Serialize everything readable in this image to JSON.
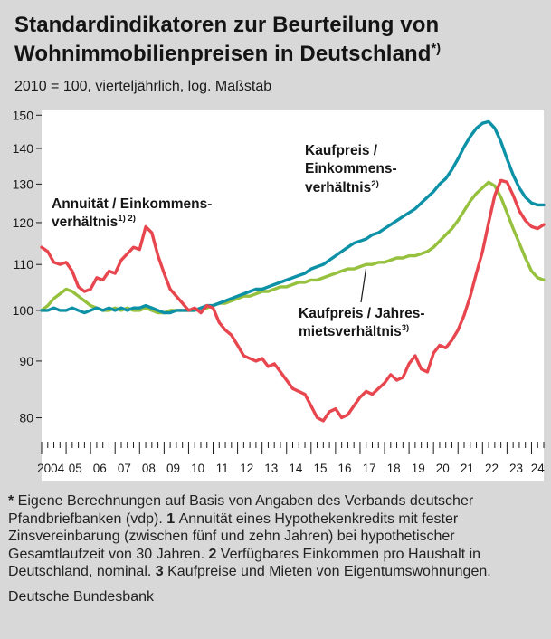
{
  "header": {
    "title_line1": "Standardindikatoren zur Beurteilung von",
    "title_line2": "Wohnimmobilienpreisen in Deutschland",
    "title_sup": "*)",
    "subtitle": "2010 = 100, vierteljährlich, log. Maßstab"
  },
  "annotations": {
    "annuity": {
      "line1": "Annuität / Einkommens-",
      "line2": "verhältnis",
      "sup": "1) 2)"
    },
    "price_income": {
      "line1": "Kaufpreis /",
      "line2": "Einkommens-",
      "line3": "verhältnis",
      "sup": "2)"
    },
    "price_rent": {
      "line1": "Kaufpreis / Jahres-",
      "line2": "mietsverhältnis",
      "sup": "3)"
    }
  },
  "footnotes": [
    {
      "marker": "*",
      "text": "Eigene Berechnungen auf Basis von Angaben des Verbands deutscher Pfandbriefbanken (vdp)."
    },
    {
      "marker": "1",
      "text": "Annuität eines Hypothekenkredits mit fester Zinsvereinbarung (zwischen fünf und zehn Jahren) bei hypothetischer Gesamtlaufzeit von 30 Jahren."
    },
    {
      "marker": "2",
      "text": "Verfügbares Einkommen pro Haushalt in Deutschland, nominal."
    },
    {
      "marker": "3",
      "text": "Kaufpreise und Mieten von Eigentumswohnungen."
    }
  ],
  "source": "Deutsche Bundesbank",
  "colors": {
    "background": "#d8d8d8",
    "plot_bg": "#ffffff",
    "text": "#1a1a1a",
    "red": "#e8464e",
    "teal": "#0d91a7",
    "green": "#96c13e"
  },
  "chart_data": {
    "type": "line",
    "title": "Standardindikatoren zur Beurteilung von Wohnimmobilienpreisen in Deutschland*)",
    "subtitle": "2010 = 100, vierteljährlich, log. Maßstab",
    "y_scale": "log",
    "ylim": [
      78,
      151.5
    ],
    "y_ticks": [
      80,
      90,
      100,
      110,
      120,
      130,
      140,
      150
    ],
    "grid": false,
    "frequency": "quarterly",
    "x_range": [
      "2004 Q1",
      "2024 Q3"
    ],
    "x_tick_labels": [
      "2004",
      "05",
      "06",
      "07",
      "08",
      "09",
      "10",
      "11",
      "12",
      "13",
      "14",
      "15",
      "16",
      "17",
      "18",
      "19",
      "20",
      "21",
      "22",
      "23",
      "24"
    ],
    "series": [
      {
        "name": "Annuität / Einkommensverhältnis 1) 2)",
        "key": "annuity-income-ratio",
        "color": "#e8464e",
        "values": [
          114,
          113,
          110.5,
          110,
          110.5,
          108.5,
          105,
          104,
          104.5,
          107,
          106.5,
          108.5,
          108,
          111,
          112.5,
          114,
          113.5,
          119,
          117.5,
          112,
          108,
          104.5,
          103,
          101.5,
          100,
          100.5,
          99.5,
          101,
          100.5,
          97.5,
          96,
          95,
          93,
          91,
          90.5,
          90,
          90.5,
          89,
          89.5,
          88,
          86.5,
          85,
          84.5,
          84,
          82,
          80,
          79.5,
          81,
          81.5,
          80,
          80.5,
          82,
          83.5,
          84.5,
          84,
          85,
          86,
          87.5,
          86.5,
          87,
          89.5,
          91,
          88.5,
          88,
          91.5,
          93,
          92.5,
          94,
          96,
          99,
          103,
          108,
          113,
          120,
          127,
          131,
          130.5,
          127,
          123,
          120.5,
          119,
          118.5,
          119.5
        ]
      },
      {
        "name": "Kaufpreis / Einkommensverhältnis 2)",
        "key": "price-income-ratio",
        "color": "#0d91a7",
        "values": [
          100,
          100,
          100.5,
          100,
          100,
          100.5,
          100,
          99.5,
          100,
          100.5,
          100,
          100.5,
          100,
          100.5,
          100,
          100.5,
          100.5,
          101,
          100.5,
          100,
          99.5,
          99.5,
          100,
          100,
          100,
          100,
          100.5,
          101,
          101,
          101.5,
          102,
          102.5,
          103,
          103.5,
          104,
          104.5,
          104.5,
          105,
          105.5,
          106,
          106.5,
          107,
          107.5,
          108,
          109,
          109.5,
          110,
          111,
          112,
          113,
          114,
          115,
          115.5,
          116,
          117,
          117.5,
          118.5,
          119.5,
          120.5,
          121.5,
          122.5,
          123.5,
          125,
          126.5,
          128,
          130,
          131.5,
          134,
          137,
          140.5,
          143.5,
          146,
          147.5,
          148,
          146,
          142,
          137,
          132.5,
          129,
          126.5,
          125,
          124.5,
          124.5
        ]
      },
      {
        "name": "Kaufpreis / Jahresmietsverhältnis 3)",
        "key": "price-rent-ratio",
        "color": "#96c13e",
        "values": [
          100,
          101,
          102.5,
          103.5,
          104.5,
          104,
          103,
          102,
          101,
          100.5,
          100,
          100,
          100.5,
          100,
          100.5,
          100,
          100,
          100.5,
          100,
          99.5,
          99.5,
          100,
          100,
          100,
          100,
          100,
          100.5,
          100.5,
          101,
          101.5,
          101.5,
          102,
          102.5,
          103,
          103,
          103.5,
          104,
          104,
          104.5,
          105,
          105,
          105.5,
          106,
          106,
          106.5,
          106.5,
          107,
          107.5,
          108,
          108.5,
          109,
          109,
          109.5,
          110,
          110,
          110.5,
          110.5,
          111,
          111.5,
          111.5,
          112,
          112,
          112.5,
          113,
          114,
          115.5,
          117,
          118.5,
          120.5,
          123,
          125.5,
          127.5,
          129,
          130.5,
          129.5,
          126.5,
          122.5,
          118.5,
          115,
          111.5,
          108.5,
          107,
          106.5
        ]
      }
    ]
  }
}
